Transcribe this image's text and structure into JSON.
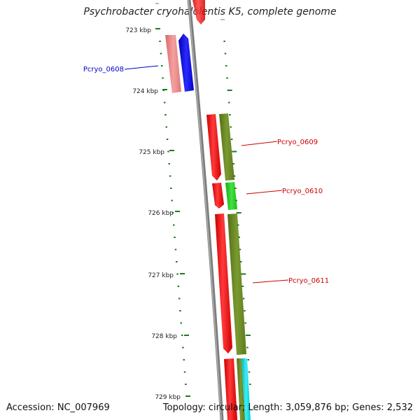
{
  "title": "Psychrobacter cryohalolentis K5, complete genome",
  "accession_text": "Accession: NC_007969",
  "topology_text": "Topology: circular; Length: 3,059,876 bp; Genes: 2,532",
  "colors": {
    "backbone": "#7d7d7d",
    "tick": "#1e7a1e",
    "gene_red": "#ff0000",
    "gene_pink": "#f08080",
    "gene_blue": "#0000ff",
    "gene_olive": "#6b8a23",
    "gene_green": "#22cc22",
    "gene_cyan": "#00d8e0",
    "label_blue": "#0000cc",
    "label_red": "#cc0000"
  },
  "scale_labels": [
    "723 kbp",
    "724 kbp",
    "725 kbp",
    "726 kbp",
    "727 kbp",
    "728 kbp",
    "729 kbp"
  ],
  "gene_labels": [
    {
      "name": "Pcryo_0608",
      "color": "blue"
    },
    {
      "name": "Pcryo_0609",
      "color": "red"
    },
    {
      "name": "Pcryo_0610",
      "color": "red"
    },
    {
      "name": "Pcryo_0611",
      "color": "red"
    }
  ]
}
